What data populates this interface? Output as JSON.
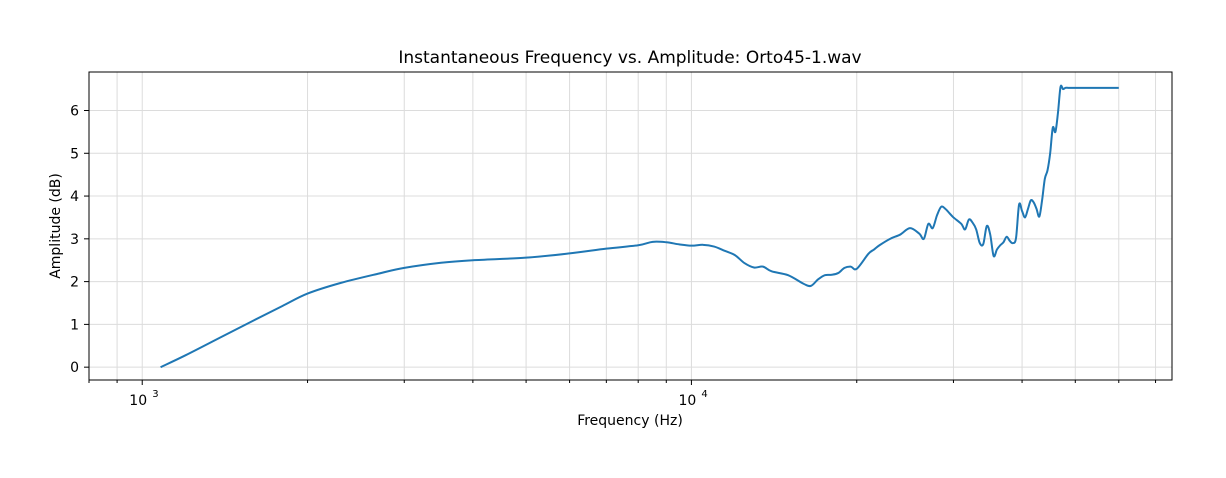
{
  "chart_data": {
    "type": "line",
    "title": "Instantaneous Frequency vs. Amplitude: Orto45-1.wav",
    "xlabel": "Frequency (Hz)",
    "ylabel": "Amplitude (dB)",
    "xscale": "log",
    "xlim": [
      800,
      75000
    ],
    "ylim": [
      -0.3,
      6.9
    ],
    "grid": true,
    "x_major_ticks": [
      {
        "value": 1000,
        "base": "10",
        "exp": "3"
      },
      {
        "value": 10000,
        "base": "10",
        "exp": "4"
      }
    ],
    "y_ticks": [
      0,
      1,
      2,
      3,
      4,
      5,
      6
    ],
    "y_tick_labels": [
      "0",
      "1",
      "2",
      "3",
      "4",
      "5",
      "6"
    ],
    "line_color": "#1f77b4",
    "series": [
      {
        "x": [
          1080,
          1200,
          1400,
          1600,
          1800,
          2000,
          2300,
          2700,
          3000,
          3500,
          4000,
          5000,
          6000,
          7000,
          8000,
          8500,
          9000,
          9500,
          10000,
          10500,
          11000,
          11500,
          12000,
          12500,
          13000,
          13500,
          14000,
          15000,
          16000,
          16500,
          17000,
          17500,
          18000,
          18500,
          19000,
          19500,
          20000,
          21000,
          21500,
          22000,
          23000,
          24000,
          25000,
          26000,
          26500,
          27000,
          27500,
          28000,
          28500,
          29000,
          29500,
          30000,
          31000,
          31500,
          32000,
          32500,
          33000,
          33500,
          34000,
          34500,
          35000,
          35500,
          36000,
          36500,
          37000,
          37500,
          38000,
          38500,
          39000,
          39500,
          40000,
          40500,
          41000,
          41500,
          42000,
          42500,
          43000,
          43500,
          44000,
          44500,
          45000,
          45500,
          46000,
          46500,
          47000,
          47500,
          48000,
          48500,
          49000,
          50000,
          55000,
          60000
        ],
        "y": [
          0.0,
          0.28,
          0.72,
          1.1,
          1.43,
          1.72,
          1.97,
          2.19,
          2.32,
          2.44,
          2.5,
          2.56,
          2.66,
          2.77,
          2.85,
          2.93,
          2.92,
          2.87,
          2.84,
          2.86,
          2.82,
          2.72,
          2.62,
          2.43,
          2.33,
          2.35,
          2.24,
          2.15,
          1.95,
          1.9,
          2.05,
          2.15,
          2.16,
          2.2,
          2.32,
          2.35,
          2.3,
          2.65,
          2.75,
          2.85,
          3.0,
          3.1,
          3.25,
          3.12,
          3.0,
          3.35,
          3.25,
          3.55,
          3.75,
          3.7,
          3.6,
          3.5,
          3.35,
          3.22,
          3.45,
          3.38,
          3.22,
          2.9,
          2.88,
          3.3,
          3.1,
          2.6,
          2.75,
          2.85,
          2.92,
          3.05,
          2.95,
          2.9,
          3.02,
          3.8,
          3.65,
          3.5,
          3.7,
          3.9,
          3.85,
          3.7,
          3.52,
          3.9,
          4.4,
          4.6,
          5.0,
          5.6,
          5.5,
          5.95,
          6.55,
          6.5,
          6.53,
          6.53,
          6.53,
          6.53,
          6.53,
          6.53
        ]
      }
    ]
  }
}
